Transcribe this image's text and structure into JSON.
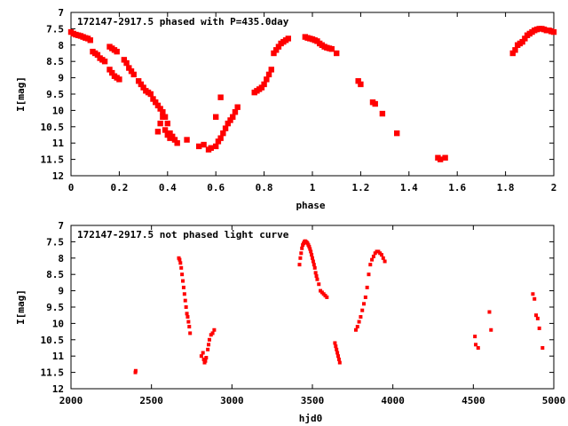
{
  "chart_data": [
    {
      "type": "scatter",
      "title": "172147-2917.5 phased with P=435.0day",
      "xlabel": "phase",
      "ylabel": "I[mag]",
      "xlim": [
        0,
        2
      ],
      "ylim": [
        7,
        12
      ],
      "y_inverted": true,
      "grid": false,
      "point_color": "#ff0000",
      "xticks": [
        "0",
        "0.2",
        "0.4",
        "0.6",
        "0.8",
        "1",
        "1.2",
        "1.4",
        "1.6",
        "1.8",
        "2"
      ],
      "yticks": [
        "7",
        "7.5",
        "8",
        "8.5",
        "9",
        "9.5",
        "10",
        "10.5",
        "11",
        "11.5",
        "12"
      ],
      "x": [
        0.0,
        0.01,
        0.02,
        0.03,
        0.04,
        0.05,
        0.06,
        0.07,
        0.08,
        0.09,
        0.1,
        0.11,
        0.12,
        0.13,
        0.14,
        0.16,
        0.17,
        0.18,
        0.19,
        0.16,
        0.17,
        0.18,
        0.19,
        0.2,
        0.22,
        0.23,
        0.24,
        0.25,
        0.26,
        0.28,
        0.29,
        0.3,
        0.31,
        0.32,
        0.33,
        0.34,
        0.35,
        0.36,
        0.37,
        0.38,
        0.39,
        0.4,
        0.41,
        0.42,
        0.43,
        0.44,
        0.36,
        0.37,
        0.38,
        0.39,
        0.4,
        0.41,
        0.48,
        0.53,
        0.55,
        0.57,
        0.58,
        0.6,
        0.61,
        0.62,
        0.63,
        0.64,
        0.65,
        0.66,
        0.67,
        0.68,
        0.69,
        0.62,
        0.6,
        0.76,
        0.77,
        0.78,
        0.79,
        0.8,
        0.81,
        0.82,
        0.83,
        0.84,
        0.85,
        0.86,
        0.87,
        0.88,
        0.89,
        0.9,
        0.97,
        0.98,
        0.99,
        1.0,
        1.01,
        1.02,
        1.03,
        1.04,
        1.05,
        1.06,
        1.07,
        1.08,
        1.1,
        1.19,
        1.2,
        1.25,
        1.26,
        1.29,
        1.35,
        1.52,
        1.53,
        1.55,
        1.83,
        1.84,
        1.85,
        1.86,
        1.87,
        1.88,
        1.89,
        1.9,
        1.91,
        1.92,
        1.93,
        1.94,
        1.95,
        1.96,
        1.97,
        1.98,
        1.99,
        2.0
      ],
      "y": [
        7.6,
        7.65,
        7.68,
        7.7,
        7.72,
        7.75,
        7.78,
        7.8,
        7.85,
        8.2,
        8.25,
        8.3,
        8.4,
        8.45,
        8.5,
        8.05,
        8.1,
        8.15,
        8.2,
        8.75,
        8.85,
        8.95,
        9.0,
        9.05,
        8.45,
        8.55,
        8.7,
        8.8,
        8.9,
        9.1,
        9.2,
        9.3,
        9.4,
        9.45,
        9.5,
        9.65,
        9.75,
        9.85,
        9.95,
        10.05,
        10.2,
        10.4,
        10.7,
        10.8,
        10.9,
        11.0,
        10.65,
        10.4,
        10.2,
        10.6,
        10.75,
        10.85,
        10.9,
        11.1,
        11.05,
        11.2,
        11.15,
        11.1,
        10.95,
        10.85,
        10.7,
        10.55,
        10.4,
        10.3,
        10.2,
        10.05,
        9.9,
        9.6,
        10.2,
        9.45,
        9.4,
        9.35,
        9.3,
        9.2,
        9.05,
        8.9,
        8.75,
        8.25,
        8.15,
        8.05,
        7.95,
        7.9,
        7.85,
        7.8,
        7.75,
        7.78,
        7.8,
        7.82,
        7.85,
        7.88,
        7.95,
        8.0,
        8.05,
        8.08,
        8.1,
        8.12,
        8.25,
        9.1,
        9.2,
        9.75,
        9.8,
        10.1,
        10.7,
        11.45,
        11.5,
        11.45,
        8.25,
        8.15,
        8.0,
        7.95,
        7.9,
        7.8,
        7.7,
        7.65,
        7.6,
        7.55,
        7.52,
        7.5,
        7.5,
        7.52,
        7.55,
        7.55,
        7.58,
        7.6
      ]
    },
    {
      "type": "scatter",
      "title": "172147-2917.5 not phased light curve",
      "xlabel": "hjd0",
      "ylabel": "I[mag]",
      "xlim": [
        2000,
        5000
      ],
      "ylim": [
        7,
        12
      ],
      "y_inverted": true,
      "grid": false,
      "point_color": "#ff0000",
      "xticks": [
        "2000",
        "2500",
        "3000",
        "3500",
        "4000",
        "4500",
        "5000"
      ],
      "yticks": [
        "7",
        "7.5",
        "8",
        "8.5",
        "9",
        "9.5",
        "10",
        "10.5",
        "11",
        "11.5",
        "12"
      ],
      "x": [
        2400,
        2402,
        2670,
        2675,
        2680,
        2685,
        2690,
        2695,
        2700,
        2705,
        2710,
        2715,
        2720,
        2725,
        2730,
        2735,
        2740,
        2810,
        2820,
        2825,
        2830,
        2835,
        2840,
        2850,
        2855,
        2860,
        2870,
        2880,
        2890,
        3420,
        3425,
        3430,
        3435,
        3440,
        3445,
        3450,
        3455,
        3460,
        3465,
        3470,
        3475,
        3480,
        3485,
        3490,
        3495,
        3500,
        3505,
        3510,
        3515,
        3520,
        3525,
        3530,
        3540,
        3550,
        3560,
        3570,
        3580,
        3590,
        3640,
        3645,
        3650,
        3655,
        3660,
        3665,
        3670,
        3770,
        3780,
        3790,
        3800,
        3810,
        3820,
        3830,
        3840,
        3850,
        3860,
        3870,
        3880,
        3890,
        3900,
        3910,
        3920,
        3930,
        3940,
        3950,
        4510,
        4515,
        4530,
        4600,
        4610,
        4870,
        4880,
        4890,
        4900,
        4910,
        4930
      ],
      "y": [
        11.5,
        11.45,
        8.0,
        8.05,
        8.15,
        8.3,
        8.5,
        8.7,
        8.9,
        9.1,
        9.3,
        9.5,
        9.7,
        9.8,
        9.95,
        10.1,
        10.3,
        11.0,
        10.9,
        11.1,
        11.2,
        11.15,
        11.05,
        10.8,
        10.65,
        10.5,
        10.35,
        10.3,
        10.2,
        8.2,
        8.0,
        7.85,
        7.7,
        7.6,
        7.55,
        7.5,
        7.48,
        7.5,
        7.52,
        7.55,
        7.6,
        7.65,
        7.72,
        7.8,
        7.9,
        8.0,
        8.1,
        8.2,
        8.3,
        8.45,
        8.55,
        8.65,
        8.8,
        9.0,
        9.05,
        9.1,
        9.15,
        9.2,
        10.6,
        10.7,
        10.8,
        10.9,
        11.0,
        11.1,
        11.2,
        10.2,
        10.1,
        9.95,
        9.8,
        9.6,
        9.4,
        9.2,
        8.9,
        8.5,
        8.2,
        8.05,
        7.95,
        7.85,
        7.8,
        7.8,
        7.85,
        7.9,
        8.0,
        8.1,
        10.4,
        10.65,
        10.75,
        9.65,
        10.2,
        9.1,
        9.25,
        9.75,
        9.85,
        10.15,
        10.75
      ]
    }
  ]
}
